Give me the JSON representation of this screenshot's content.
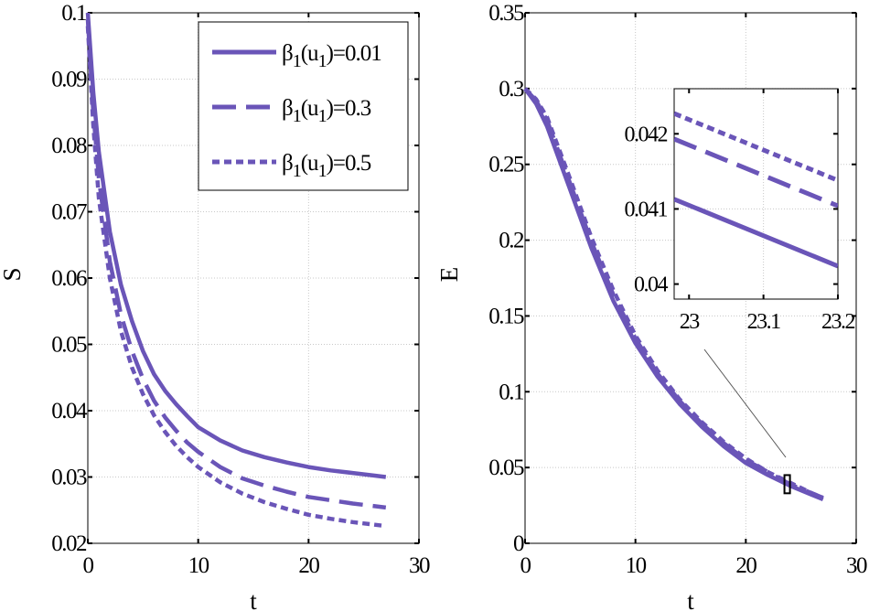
{
  "colors": {
    "series": "#6a55b8",
    "grid": "#c8c8c8",
    "frame": "#000000",
    "zoom_box": "#000000"
  },
  "chart_data": [
    {
      "type": "line",
      "panel": "left",
      "xlabel": "t",
      "ylabel": "S",
      "xlim": [
        0,
        30
      ],
      "ylim": [
        0.02,
        0.1
      ],
      "xticks": [
        0,
        10,
        20,
        30
      ],
      "xtick_labels": [
        "0",
        "10",
        "20",
        "30"
      ],
      "yticks": [
        0.02,
        0.03,
        0.04,
        0.05,
        0.06,
        0.07,
        0.08,
        0.09,
        0.1
      ],
      "ytick_labels": [
        "0.02",
        "0.03",
        "0.04",
        "0.05",
        "0.06",
        "0.07",
        "0.08",
        "0.09",
        "0.1"
      ],
      "grid": true,
      "legend_position": "top-right",
      "series": [
        {
          "name": "β1(u1)=0.01",
          "legend_parts": [
            "β",
            "1",
            "(u",
            "1",
            ")=0.01"
          ],
          "style": "solid",
          "x": [
            0,
            0.5,
            1,
            2,
            3,
            4,
            5,
            6,
            7,
            8,
            9,
            10,
            12,
            14,
            16,
            18,
            20,
            22,
            24,
            26,
            27
          ],
          "y": [
            0.1,
            0.088,
            0.079,
            0.067,
            0.059,
            0.0535,
            0.049,
            0.0455,
            0.043,
            0.041,
            0.0392,
            0.0375,
            0.0355,
            0.034,
            0.033,
            0.0322,
            0.0315,
            0.031,
            0.0306,
            0.0302,
            0.03
          ]
        },
        {
          "name": "β1(u1)=0.3",
          "legend_parts": [
            "β",
            "1",
            "(u",
            "1",
            ")=0.3"
          ],
          "style": "dashed",
          "x": [
            0,
            0.5,
            1,
            2,
            3,
            4,
            5,
            6,
            7,
            8,
            9,
            10,
            12,
            14,
            16,
            18,
            20,
            22,
            24,
            26,
            27
          ],
          "y": [
            0.099,
            0.085,
            0.075,
            0.0625,
            0.0545,
            0.049,
            0.0448,
            0.0415,
            0.039,
            0.037,
            0.0352,
            0.0338,
            0.0315,
            0.0298,
            0.0287,
            0.0278,
            0.027,
            0.0265,
            0.026,
            0.0256,
            0.0254
          ]
        },
        {
          "name": "β1(u1)=0.5",
          "legend_parts": [
            "β",
            "1",
            "(u",
            "1",
            ")=0.5"
          ],
          "style": "dotted",
          "x": [
            0,
            0.5,
            1,
            2,
            3,
            4,
            5,
            6,
            7,
            8,
            9,
            10,
            12,
            14,
            16,
            18,
            20,
            22,
            24,
            26,
            27
          ],
          "y": [
            0.098,
            0.083,
            0.072,
            0.06,
            0.052,
            0.0465,
            0.0425,
            0.0393,
            0.0368,
            0.0347,
            0.033,
            0.0315,
            0.0292,
            0.0275,
            0.0262,
            0.0252,
            0.0243,
            0.0237,
            0.0232,
            0.0228,
            0.0226
          ]
        }
      ]
    },
    {
      "type": "line",
      "panel": "right",
      "xlabel": "t",
      "ylabel": "E",
      "xlim": [
        0,
        30
      ],
      "ylim": [
        0,
        0.35
      ],
      "xticks": [
        0,
        10,
        20,
        30
      ],
      "xtick_labels": [
        "0",
        "10",
        "20",
        "30"
      ],
      "yticks": [
        0,
        0.05,
        0.1,
        0.15,
        0.2,
        0.25,
        0.3,
        0.35
      ],
      "ytick_labels": [
        "0",
        "0.05",
        "0.1",
        "0.15",
        "0.2",
        "0.25",
        "0.3",
        "0.35"
      ],
      "grid": true,
      "zoom_region": {
        "x": [
          23.5,
          24
        ],
        "y": [
          0.033,
          0.045
        ]
      },
      "series": [
        {
          "name": "β1(u1)=0.01",
          "style": "solid",
          "x": [
            0,
            1,
            2,
            4,
            6,
            8,
            10,
            12,
            14,
            16,
            18,
            20,
            22,
            24,
            26,
            27
          ],
          "y": [
            0.3,
            0.29,
            0.275,
            0.235,
            0.195,
            0.16,
            0.132,
            0.11,
            0.092,
            0.077,
            0.064,
            0.053,
            0.045,
            0.038,
            0.032,
            0.029
          ]
        },
        {
          "name": "β1(u1)=0.3",
          "style": "dashed",
          "x": [
            0,
            1,
            2,
            4,
            6,
            8,
            10,
            12,
            14,
            16,
            18,
            20,
            22,
            24,
            26,
            27
          ],
          "y": [
            0.3,
            0.292,
            0.279,
            0.239,
            0.199,
            0.164,
            0.135,
            0.112,
            0.094,
            0.079,
            0.066,
            0.055,
            0.047,
            0.039,
            0.033,
            0.03
          ]
        },
        {
          "name": "β1(u1)=0.5",
          "style": "dotted",
          "x": [
            0,
            1,
            2,
            4,
            6,
            8,
            10,
            12,
            14,
            16,
            18,
            20,
            22,
            24,
            26,
            27
          ],
          "y": [
            0.3,
            0.293,
            0.281,
            0.242,
            0.202,
            0.167,
            0.137,
            0.114,
            0.095,
            0.08,
            0.067,
            0.056,
            0.047,
            0.04,
            0.033,
            0.03
          ]
        }
      ]
    },
    {
      "type": "line",
      "panel": "inset",
      "xlim": [
        22.98,
        23.2
      ],
      "ylim": [
        0.0398,
        0.0426
      ],
      "xticks": [
        23,
        23.1,
        23.2
      ],
      "xtick_labels": [
        "23",
        "23.1",
        "23.2"
      ],
      "yticks": [
        0.04,
        0.041,
        0.042
      ],
      "ytick_labels": [
        "0.04",
        "0.041",
        "0.042"
      ],
      "grid": true,
      "series": [
        {
          "name": "β1(u1)=0.01",
          "style": "solid",
          "x": [
            22.98,
            23.2
          ],
          "y": [
            0.04113,
            0.04024
          ]
        },
        {
          "name": "β1(u1)=0.3",
          "style": "dashed",
          "x": [
            22.98,
            23.2
          ],
          "y": [
            0.04193,
            0.04104
          ]
        },
        {
          "name": "β1(u1)=0.5",
          "style": "dotted",
          "x": [
            22.98,
            23.2
          ],
          "y": [
            0.04227,
            0.04138
          ]
        }
      ]
    }
  ]
}
